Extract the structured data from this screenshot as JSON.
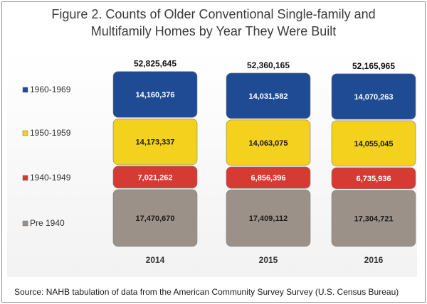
{
  "chart_data": {
    "type": "bar",
    "stacked": true,
    "title_lines": [
      "Figure 2. Counts of Older Conventional  Single-family  and",
      "Multifamily Homes  by Year They Were Built"
    ],
    "categories": [
      "2014",
      "2015",
      "2016"
    ],
    "totals": [
      "52,825,645",
      "52,360,165",
      "52,165,965"
    ],
    "series": [
      {
        "name": "Pre 1940",
        "color": "#9c9188",
        "values": [
          17470670,
          17409112,
          17304721
        ],
        "labels": [
          "17,470,670",
          "17,409,112",
          "17,304,721"
        ]
      },
      {
        "name": "1940-1949",
        "color": "#d53b32",
        "values": [
          7021262,
          6856396,
          6735936
        ],
        "labels": [
          "7,021,262",
          "6,856,396",
          "6,735,936"
        ]
      },
      {
        "name": "1950-1959",
        "color": "#f3d11c",
        "values": [
          14173337,
          14063075,
          14055045
        ],
        "labels": [
          "14,173,337",
          "14,063,075",
          "14,055,045"
        ]
      },
      {
        "name": "1960-1969",
        "color": "#1f4b94",
        "values": [
          14160376,
          14031582,
          14070263
        ],
        "labels": [
          "14,160,376",
          "14,031,582",
          "14,070,263"
        ]
      }
    ],
    "legend_position": "left",
    "grid": false,
    "source": "Source: NAHB tabulation of data from the American Community Survey Survey (U.S. Census  Bureau)"
  }
}
